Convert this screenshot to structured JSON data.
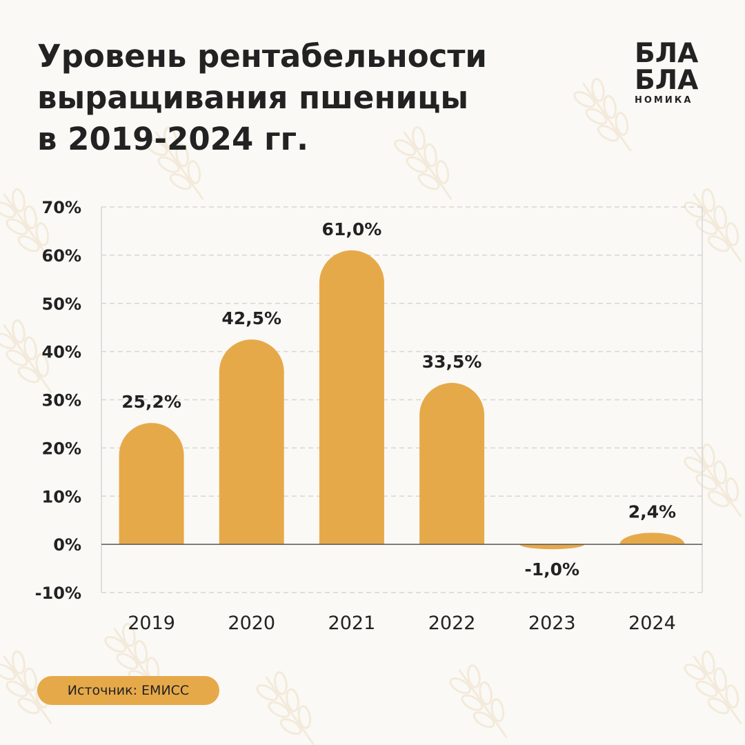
{
  "header": {
    "title_lines": [
      "Уровень рентабельности",
      "выращивания пшеницы",
      "в 2019-2024 гг."
    ]
  },
  "logo": {
    "line1": "БЛА",
    "line2": "БЛА",
    "line3": "НОМИКА"
  },
  "colors": {
    "bar": "#e6a94a",
    "background": "#fbf9f5",
    "text": "#222222",
    "grid": "#d6d6d6"
  },
  "chart_data": {
    "type": "bar",
    "title": "Уровень рентабельности выращивания пшеницы в 2019-2024 гг.",
    "categories": [
      "2019",
      "2020",
      "2021",
      "2022",
      "2023",
      "2024"
    ],
    "values": [
      25.2,
      42.5,
      61.0,
      33.5,
      -1.0,
      2.4
    ],
    "value_labels": [
      "25,2%",
      "42,5%",
      "61,0%",
      "33,5%",
      "-1,0%",
      "2,4%"
    ],
    "yticks": [
      "70%",
      "60%",
      "50%",
      "40%",
      "30%",
      "20%",
      "10%",
      "0%",
      "-10%"
    ],
    "ytick_values": [
      70,
      60,
      50,
      40,
      30,
      20,
      10,
      0,
      -10
    ],
    "ylim": [
      -10,
      70
    ],
    "grid": true,
    "xlabel": "",
    "ylabel": ""
  },
  "source": {
    "label": "Источник: ЕМИСС"
  }
}
